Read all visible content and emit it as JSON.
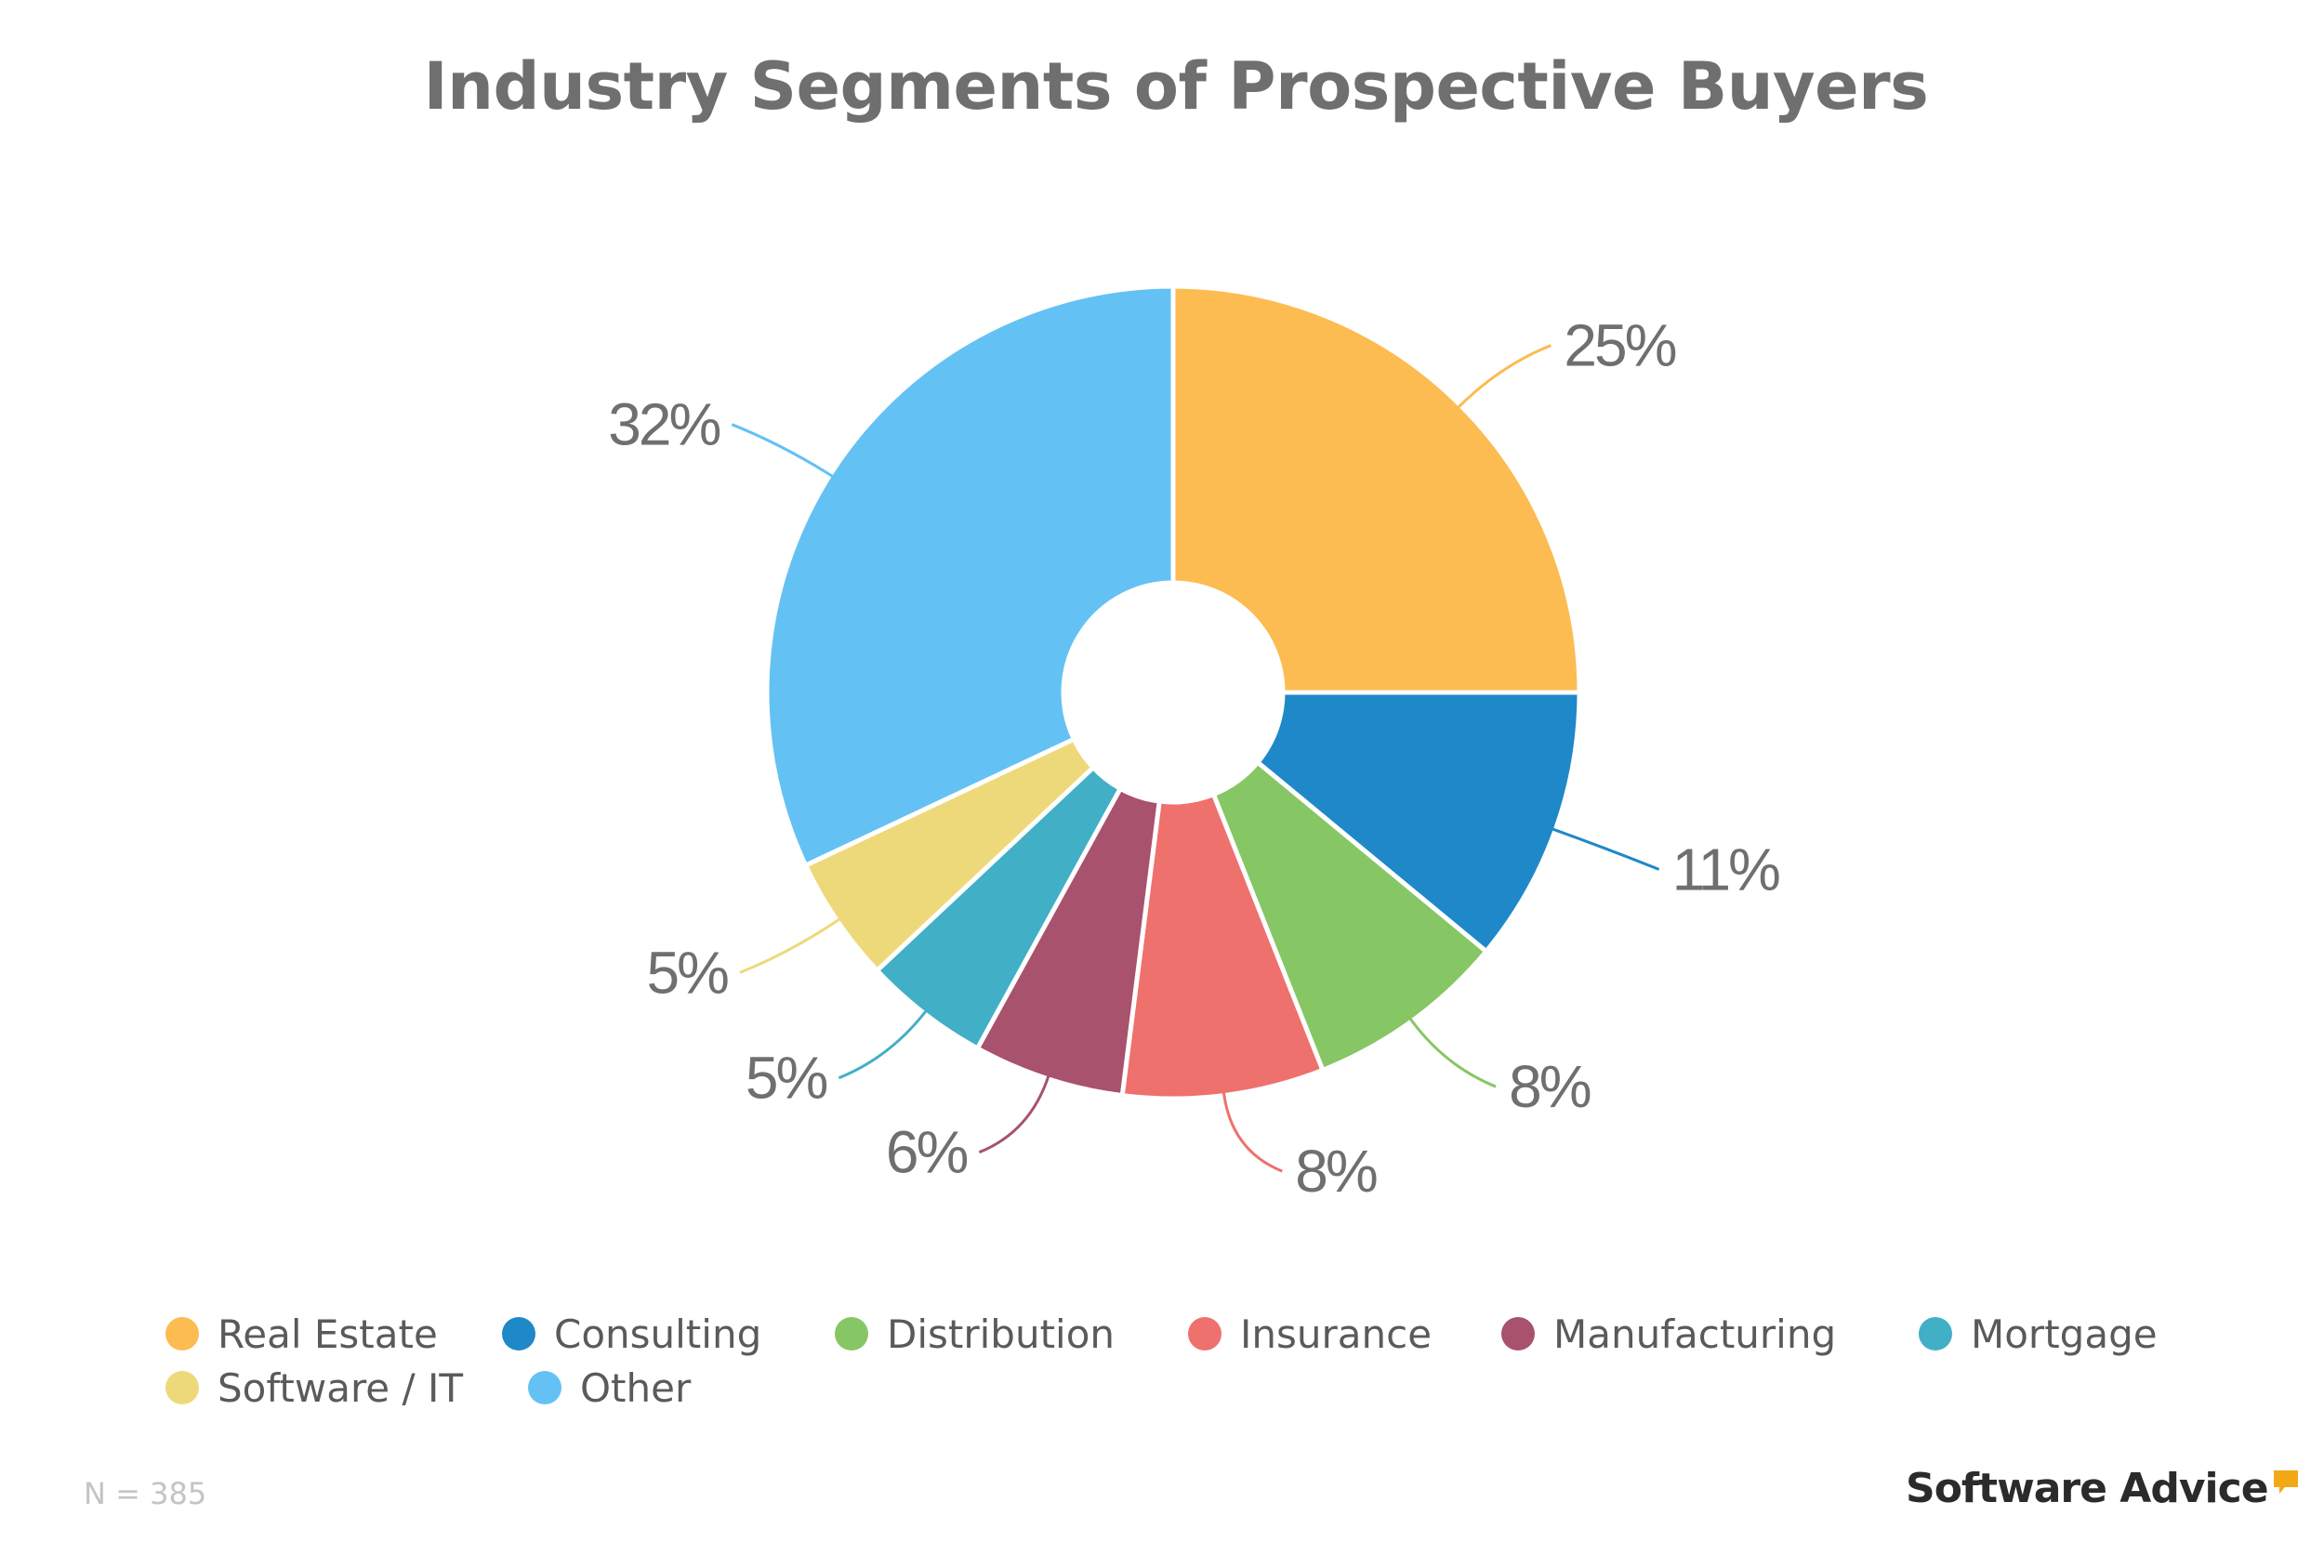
{
  "title": "Industry Segments of Prospective Buyers",
  "chart_data": {
    "type": "pie",
    "style": "donut",
    "categories": [
      "Real Estate",
      "Consulting",
      "Distribution",
      "Insurance",
      "Manufacturing",
      "Mortgage",
      "Software / IT",
      "Other"
    ],
    "values": [
      25,
      11,
      8,
      8,
      6,
      5,
      5,
      32
    ],
    "data_labels": [
      "25%",
      "11%",
      "8%",
      "8%",
      "6%",
      "5%",
      "5%",
      "32%"
    ],
    "colors": [
      "#FCBC52",
      "#1F88C8",
      "#87C665",
      "#EE716E",
      "#A8526D",
      "#41AFC6",
      "#EED97A",
      "#64C1F4"
    ],
    "legend_position": "bottom",
    "start_angle": "12 o'clock, clockwise"
  },
  "footnote": "N = 385",
  "brand": {
    "name": "Software Advice",
    "mark_color": "#F3A916"
  }
}
